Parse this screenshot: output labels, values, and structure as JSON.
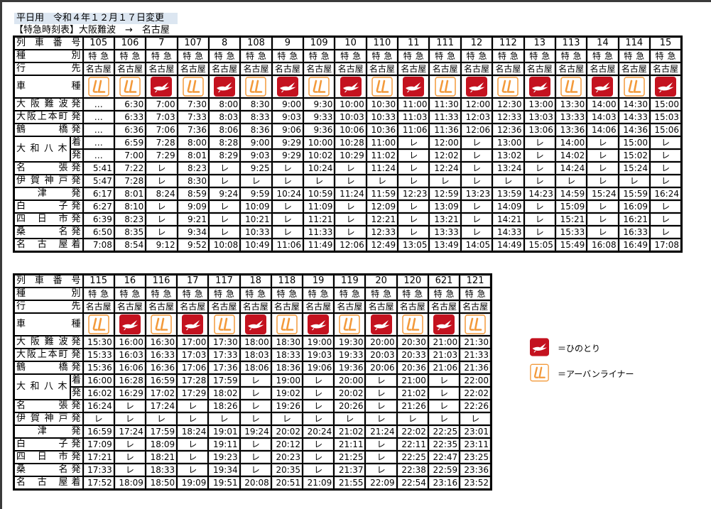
{
  "header": {
    "line1": "平日用　令和４年１２月１７日変更",
    "line2": "【特急時刻表】大阪難波　→　名古屋"
  },
  "labels": {
    "number": "列車番号",
    "type": "種別",
    "dest": "行先",
    "car": "車種"
  },
  "colors": {
    "hinotori": "#c4121f",
    "urbanliner": "#f39a3c"
  },
  "stations": [
    {
      "name": "大阪難波",
      "suffix": "発"
    },
    {
      "name": "大阪上本町",
      "suffix": "発"
    },
    {
      "name": "鶴橋",
      "suffix": "発"
    },
    {
      "name": "大和八木",
      "suffix": "着"
    },
    {
      "name": "",
      "suffix": "発"
    },
    {
      "name": "名張",
      "suffix": "発"
    },
    {
      "name": "伊賀神戸",
      "suffix": "発"
    },
    {
      "name": "津",
      "suffix": "発"
    },
    {
      "name": "白子",
      "suffix": "発"
    },
    {
      "name": "四日市",
      "suffix": "発"
    },
    {
      "name": "桑名",
      "suffix": "発"
    },
    {
      "name": "名古屋",
      "suffix": "着"
    }
  ],
  "tables": [
    {
      "trains": [
        {
          "number": "105",
          "type": "特急",
          "dest": "名古屋",
          "car": "urbanliner-icon",
          "times": [
            "…",
            "…",
            "…",
            "…",
            "…",
            "5:41",
            "5:47",
            "6:17",
            "6:27",
            "6:39",
            "6:50",
            "7:08"
          ]
        },
        {
          "number": "106",
          "type": "特急",
          "dest": "名古屋",
          "car": "urbanliner-icon",
          "times": [
            "6:30",
            "6:33",
            "6:36",
            "6:59",
            "7:00",
            "7:22",
            "7:28",
            "8:01",
            "8:10",
            "8:23",
            "8:35",
            "8:54"
          ]
        },
        {
          "number": "7",
          "type": "特急",
          "dest": "名古屋",
          "car": "hinotori-icon",
          "times": [
            "7:00",
            "7:03",
            "7:06",
            "7:28",
            "7:29",
            "レ",
            "レ",
            "8:24",
            "レ",
            "レ",
            "レ",
            "9:12"
          ]
        },
        {
          "number": "107",
          "type": "特急",
          "dest": "名古屋",
          "car": "urbanliner-icon",
          "times": [
            "7:30",
            "7:33",
            "7:36",
            "8:00",
            "8:01",
            "8:23",
            "8:30",
            "8:59",
            "9:09",
            "9:21",
            "9:34",
            "9:52"
          ]
        },
        {
          "number": "8",
          "type": "特急",
          "dest": "名古屋",
          "car": "hinotori-icon",
          "times": [
            "8:00",
            "8:03",
            "8:06",
            "8:28",
            "8:29",
            "レ",
            "レ",
            "9:24",
            "レ",
            "レ",
            "レ",
            "10:08"
          ]
        },
        {
          "number": "108",
          "type": "特急",
          "dest": "名古屋",
          "car": "urbanliner-icon",
          "times": [
            "8:30",
            "8:33",
            "8:36",
            "9:00",
            "9:03",
            "9:25",
            "レ",
            "9:59",
            "10:09",
            "10:21",
            "10:33",
            "10:49"
          ]
        },
        {
          "number": "9",
          "type": "特急",
          "dest": "名古屋",
          "car": "hinotori-icon",
          "times": [
            "9:00",
            "9:03",
            "9:06",
            "9:29",
            "9:29",
            "レ",
            "レ",
            "10:24",
            "レ",
            "レ",
            "レ",
            "11:06"
          ]
        },
        {
          "number": "109",
          "type": "特急",
          "dest": "名古屋",
          "car": "urbanliner-icon",
          "times": [
            "9:30",
            "9:33",
            "9:36",
            "10:00",
            "10:02",
            "10:24",
            "レ",
            "10:59",
            "11:09",
            "11:21",
            "11:33",
            "11:49"
          ]
        },
        {
          "number": "10",
          "type": "特急",
          "dest": "名古屋",
          "car": "hinotori-icon",
          "times": [
            "10:00",
            "10:03",
            "10:06",
            "10:28",
            "10:29",
            "レ",
            "レ",
            "11:24",
            "レ",
            "レ",
            "レ",
            "12:06"
          ]
        },
        {
          "number": "110",
          "type": "特急",
          "dest": "名古屋",
          "car": "urbanliner-icon",
          "times": [
            "10:30",
            "10:33",
            "10:36",
            "11:00",
            "11:02",
            "11:24",
            "レ",
            "11:59",
            "12:09",
            "12:21",
            "12:33",
            "12:49"
          ]
        },
        {
          "number": "11",
          "type": "特急",
          "dest": "名古屋",
          "car": "hinotori-icon",
          "times": [
            "11:00",
            "11:03",
            "11:06",
            "レ",
            "レ",
            "レ",
            "レ",
            "12:23",
            "レ",
            "レ",
            "レ",
            "13:05"
          ]
        },
        {
          "number": "111",
          "type": "特急",
          "dest": "名古屋",
          "car": "urbanliner-icon",
          "times": [
            "11:30",
            "11:33",
            "11:36",
            "12:00",
            "12:02",
            "12:24",
            "レ",
            "12:59",
            "13:09",
            "13:21",
            "13:33",
            "13:49"
          ]
        },
        {
          "number": "12",
          "type": "特急",
          "dest": "名古屋",
          "car": "hinotori-icon",
          "times": [
            "12:00",
            "12:03",
            "12:06",
            "レ",
            "レ",
            "レ",
            "レ",
            "13:23",
            "レ",
            "レ",
            "レ",
            "14:05"
          ]
        },
        {
          "number": "112",
          "type": "特急",
          "dest": "名古屋",
          "car": "urbanliner-icon",
          "times": [
            "12:30",
            "12:33",
            "12:36",
            "13:00",
            "13:02",
            "13:24",
            "レ",
            "13:59",
            "14:09",
            "14:21",
            "14:33",
            "14:49"
          ]
        },
        {
          "number": "13",
          "type": "特急",
          "dest": "名古屋",
          "car": "hinotori-icon",
          "times": [
            "13:00",
            "13:03",
            "13:06",
            "レ",
            "レ",
            "レ",
            "レ",
            "14:23",
            "レ",
            "レ",
            "レ",
            "15:05"
          ]
        },
        {
          "number": "113",
          "type": "特急",
          "dest": "名古屋",
          "car": "urbanliner-icon",
          "times": [
            "13:30",
            "13:33",
            "13:36",
            "14:00",
            "14:02",
            "14:24",
            "レ",
            "14:59",
            "15:09",
            "15:21",
            "15:33",
            "15:49"
          ]
        },
        {
          "number": "14",
          "type": "特急",
          "dest": "名古屋",
          "car": "hinotori-icon",
          "times": [
            "14:00",
            "14:03",
            "14:06",
            "レ",
            "レ",
            "レ",
            "レ",
            "15:24",
            "レ",
            "レ",
            "レ",
            "16:08"
          ]
        },
        {
          "number": "114",
          "type": "特急",
          "dest": "名古屋",
          "car": "urbanliner-icon",
          "times": [
            "14:30",
            "14:33",
            "14:36",
            "15:00",
            "15:02",
            "15:24",
            "レ",
            "15:59",
            "16:09",
            "16:21",
            "16:33",
            "16:49"
          ]
        },
        {
          "number": "15",
          "type": "特急",
          "dest": "名古屋",
          "car": "hinotori-icon",
          "times": [
            "15:00",
            "15:03",
            "15:06",
            "レ",
            "レ",
            "レ",
            "レ",
            "16:24",
            "レ",
            "レ",
            "レ",
            "17:08"
          ]
        }
      ]
    },
    {
      "trains": [
        {
          "number": "115",
          "type": "特急",
          "dest": "名古屋",
          "car": "urbanliner-icon",
          "times": [
            "15:30",
            "15:33",
            "15:36",
            "16:00",
            "16:02",
            "16:24",
            "レ",
            "16:59",
            "17:09",
            "17:21",
            "17:33",
            "17:52"
          ]
        },
        {
          "number": "16",
          "type": "特急",
          "dest": "名古屋",
          "car": "hinotori-icon",
          "times": [
            "16:00",
            "16:03",
            "16:06",
            "16:28",
            "16:29",
            "レ",
            "レ",
            "17:24",
            "レ",
            "レ",
            "レ",
            "18:09"
          ]
        },
        {
          "number": "116",
          "type": "特急",
          "dest": "名古屋",
          "car": "urbanliner-icon",
          "times": [
            "16:30",
            "16:33",
            "16:36",
            "16:59",
            "17:02",
            "17:24",
            "レ",
            "17:59",
            "18:09",
            "18:21",
            "18:33",
            "18:50"
          ]
        },
        {
          "number": "17",
          "type": "特急",
          "dest": "名古屋",
          "car": "hinotori-icon",
          "times": [
            "17:00",
            "17:03",
            "17:06",
            "17:28",
            "17:29",
            "レ",
            "レ",
            "18:24",
            "レ",
            "レ",
            "レ",
            "19:09"
          ]
        },
        {
          "number": "117",
          "type": "特急",
          "dest": "名古屋",
          "car": "urbanliner-icon",
          "times": [
            "17:30",
            "17:33",
            "17:36",
            "17:59",
            "18:02",
            "18:26",
            "レ",
            "19:01",
            "19:11",
            "19:23",
            "19:34",
            "19:51"
          ]
        },
        {
          "number": "18",
          "type": "特急",
          "dest": "名古屋",
          "car": "hinotori-icon",
          "times": [
            "18:00",
            "18:03",
            "18:06",
            "レ",
            "レ",
            "レ",
            "レ",
            "19:24",
            "レ",
            "レ",
            "レ",
            "20:08"
          ]
        },
        {
          "number": "118",
          "type": "特急",
          "dest": "名古屋",
          "car": "urbanliner-icon",
          "times": [
            "18:30",
            "18:33",
            "18:36",
            "19:00",
            "19:02",
            "19:26",
            "レ",
            "20:02",
            "20:12",
            "20:23",
            "20:35",
            "20:51"
          ]
        },
        {
          "number": "19",
          "type": "特急",
          "dest": "名古屋",
          "car": "hinotori-icon",
          "times": [
            "19:00",
            "19:03",
            "19:06",
            "レ",
            "レ",
            "レ",
            "レ",
            "20:24",
            "レ",
            "レ",
            "レ",
            "21:09"
          ]
        },
        {
          "number": "119",
          "type": "特急",
          "dest": "名古屋",
          "car": "urbanliner-icon",
          "times": [
            "19:30",
            "19:33",
            "19:36",
            "20:00",
            "20:02",
            "20:26",
            "レ",
            "21:02",
            "21:11",
            "21:25",
            "21:37",
            "21:55"
          ]
        },
        {
          "number": "20",
          "type": "特急",
          "dest": "名古屋",
          "car": "hinotori-icon",
          "times": [
            "20:00",
            "20:03",
            "20:06",
            "レ",
            "レ",
            "レ",
            "レ",
            "21:24",
            "レ",
            "レ",
            "レ",
            "22:09"
          ]
        },
        {
          "number": "120",
          "type": "特急",
          "dest": "名古屋",
          "car": "urbanliner-icon",
          "times": [
            "20:30",
            "20:33",
            "20:36",
            "21:00",
            "21:02",
            "21:26",
            "レ",
            "22:02",
            "22:11",
            "22:25",
            "22:38",
            "22:54"
          ]
        },
        {
          "number": "621",
          "type": "特急",
          "dest": "名古屋",
          "car": "hinotori-icon",
          "times": [
            "21:00",
            "21:03",
            "21:06",
            "レ",
            "レ",
            "レ",
            "レ",
            "22:25",
            "22:35",
            "22:47",
            "22:59",
            "23:16"
          ]
        },
        {
          "number": "121",
          "type": "特急",
          "dest": "名古屋",
          "car": "urbanliner-icon",
          "times": [
            "21:30",
            "21:33",
            "21:36",
            "22:00",
            "22:02",
            "22:26",
            "レ",
            "23:01",
            "23:11",
            "23:25",
            "23:36",
            "23:52"
          ]
        }
      ]
    }
  ],
  "legend": [
    {
      "icon": "hinotori-icon",
      "label": "＝ひのとり"
    },
    {
      "icon": "urbanliner-icon",
      "label": "＝アーバンライナー"
    }
  ]
}
